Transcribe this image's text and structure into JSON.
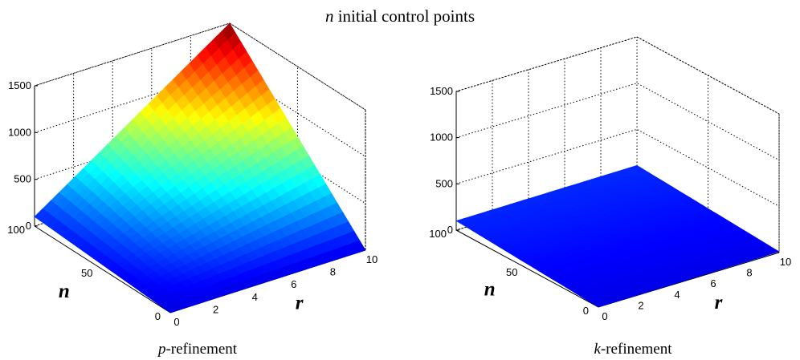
{
  "figure": {
    "title_var": "n",
    "title_rest": " initial control points"
  },
  "chart_data": [
    {
      "type": "surface",
      "caption_var": "p",
      "caption_rest": "-refinement",
      "x_label": "r",
      "y_label": "n",
      "x_range": [
        0,
        10
      ],
      "y_range": [
        0,
        100
      ],
      "z_range": [
        0,
        1500
      ],
      "x_ticks": [
        "0",
        "2",
        "4",
        "6",
        "8",
        "10"
      ],
      "y_ticks": [
        "0",
        "50",
        "100"
      ],
      "z_ticks": [
        "0",
        "500",
        "1000",
        "1500"
      ],
      "corner_values": {
        "r0_n0": 0,
        "r10_n0": 0,
        "r0_n100": 100,
        "r10_n100": 1500
      },
      "grid": true,
      "colormap": "jet"
    },
    {
      "type": "surface",
      "caption_var": "k",
      "caption_rest": "-refinement",
      "x_label": "r",
      "y_label": "n",
      "x_range": [
        0,
        10
      ],
      "y_range": [
        0,
        100
      ],
      "z_range": [
        0,
        1500
      ],
      "x_ticks": [
        "0",
        "2",
        "4",
        "6",
        "8",
        "10"
      ],
      "y_ticks": [
        "0",
        "50",
        "100"
      ],
      "z_ticks": [
        "0",
        "500",
        "1000",
        "1500"
      ],
      "corner_values": {
        "r0_n0": 0,
        "r10_n0": 10,
        "r0_n100": 100,
        "r10_n100": 110
      },
      "grid": true,
      "colormap": "jet"
    }
  ]
}
